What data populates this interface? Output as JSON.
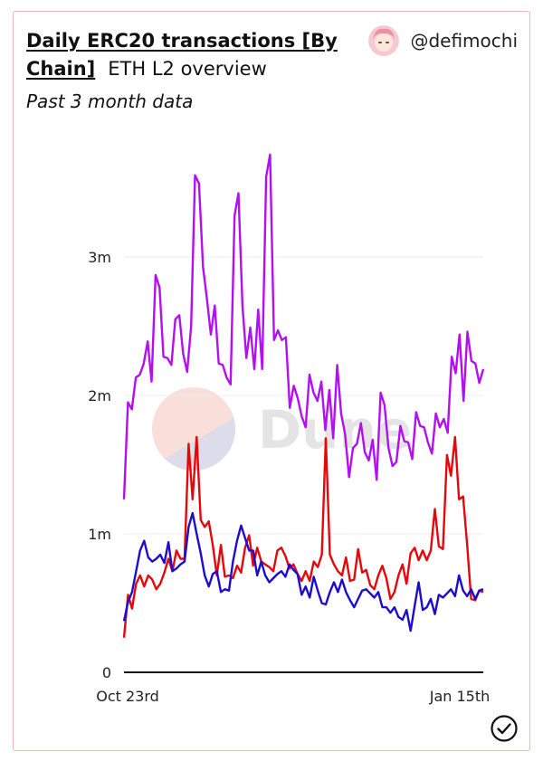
{
  "header": {
    "title": "Daily ERC20 transactions [By Chain]",
    "subtitle": "ETH L2 overview",
    "caption": "Past 3 month data",
    "author_handle": "@defimochi",
    "avatar_icon": "anime-avatar-icon",
    "watermark": "Dune"
  },
  "colors": {
    "series_purple": "#b40ff0",
    "series_red": "#e6070b",
    "series_blue": "#1c0ccc",
    "card_border": "#f0b8b3"
  },
  "chart_data": {
    "type": "line",
    "x_start_label": "Oct 23rd",
    "x_end_label": "Jan 15th",
    "x_ticks": [
      "Oct 23rd",
      "Jan 15th"
    ],
    "y_ticks": [
      "0",
      "1m",
      "2m",
      "3m"
    ],
    "y_tick_values": [
      0,
      1000000,
      2000000,
      3000000
    ],
    "ylim": [
      0,
      3700000
    ],
    "grid": true,
    "legend": "none",
    "series": [
      {
        "values": [
          1250000,
          1950000,
          1900000,
          2130000,
          2150000,
          2230000,
          2390000,
          2100000,
          2870000,
          2780000,
          2280000,
          2270000,
          2220000,
          2550000,
          2580000,
          2300000,
          2170000,
          2500000,
          3590000,
          3530000,
          2930000,
          2700000,
          2440000,
          2650000,
          2230000,
          2220000,
          2130000,
          2080000,
          3300000,
          3460000,
          2650000,
          2270000,
          2490000,
          2190000,
          2620000,
          2190000,
          3580000,
          3740000,
          2400000,
          2470000,
          2400000,
          2420000,
          1910000,
          2070000,
          1980000,
          1850000,
          1770000,
          2150000,
          2020000,
          1960000,
          2100000,
          1750000,
          2040000,
          1690000,
          2220000,
          1870000,
          1720000,
          1410000,
          1620000,
          1650000,
          1800000,
          1590000,
          1530000,
          1680000,
          1390000,
          2020000,
          1930000,
          1620000,
          1490000,
          1520000,
          1780000,
          1670000,
          1660000,
          1540000,
          1880000,
          1780000,
          1770000,
          1660000,
          1580000,
          1870000,
          1770000,
          1830000,
          1730000,
          2280000,
          2160000,
          2440000,
          1960000,
          2460000,
          2250000,
          2230000,
          2090000,
          2190000
        ]
      },
      {
        "values": [
          250000,
          560000,
          460000,
          640000,
          700000,
          620000,
          700000,
          670000,
          600000,
          640000,
          720000,
          820000,
          730000,
          880000,
          820000,
          820000,
          1650000,
          1250000,
          1700000,
          1100000,
          1050000,
          1090000,
          920000,
          700000,
          920000,
          690000,
          700000,
          680000,
          770000,
          720000,
          900000,
          990000,
          770000,
          900000,
          800000,
          780000,
          760000,
          730000,
          880000,
          900000,
          840000,
          750000,
          780000,
          710000,
          660000,
          730000,
          660000,
          800000,
          760000,
          850000,
          1690000,
          850000,
          780000,
          730000,
          700000,
          830000,
          660000,
          670000,
          890000,
          720000,
          740000,
          630000,
          600000,
          700000,
          770000,
          680000,
          530000,
          580000,
          700000,
          780000,
          640000,
          860000,
          900000,
          810000,
          880000,
          810000,
          880000,
          1180000,
          910000,
          890000,
          1570000,
          1420000,
          1700000,
          1250000,
          1270000,
          920000,
          530000,
          520000,
          590000,
          580000
        ]
      },
      {
        "values": [
          370000,
          510000,
          580000,
          730000,
          880000,
          950000,
          830000,
          800000,
          820000,
          850000,
          790000,
          940000,
          730000,
          750000,
          780000,
          800000,
          1050000,
          1150000,
          1000000,
          860000,
          700000,
          620000,
          710000,
          730000,
          580000,
          600000,
          590000,
          800000,
          950000,
          1060000,
          970000,
          880000,
          880000,
          700000,
          800000,
          700000,
          650000,
          680000,
          710000,
          730000,
          690000,
          780000,
          740000,
          710000,
          560000,
          620000,
          540000,
          690000,
          590000,
          500000,
          490000,
          580000,
          650000,
          580000,
          670000,
          580000,
          520000,
          470000,
          530000,
          590000,
          600000,
          570000,
          540000,
          580000,
          470000,
          470000,
          430000,
          470000,
          400000,
          380000,
          450000,
          300000,
          480000,
          650000,
          450000,
          470000,
          530000,
          420000,
          560000,
          540000,
          570000,
          600000,
          550000,
          700000,
          590000,
          550000,
          600000,
          530000,
          590000,
          600000
        ]
      }
    ]
  }
}
